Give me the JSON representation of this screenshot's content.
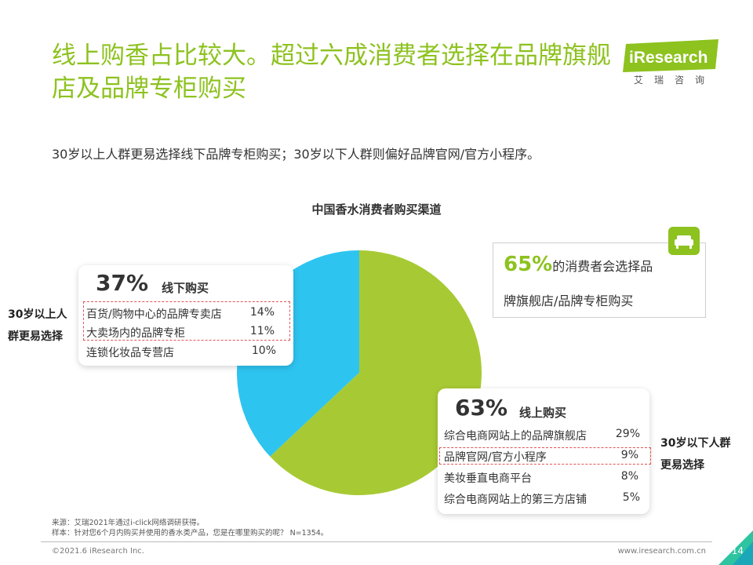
{
  "title": "线上购香占比较大。超过六成消费者选择在品牌旗舰店及品牌专柜购买",
  "logo": {
    "brand": "iResearch",
    "sub": "艾瑞咨询"
  },
  "subtitle": "30岁以上人群更易选择线下品牌专柜购买；30岁以下人群则偏好品牌官网/官方小程序。",
  "callout": {
    "highlight": "65%",
    "line1_rest": "的消费者会选择品",
    "line2": "牌旗舰店/品牌专柜购买",
    "icon": "sofa-icon"
  },
  "notes": {
    "left": [
      "30岁以上人",
      "群更易选择"
    ],
    "right": [
      "30岁以下人群",
      "更易选择"
    ]
  },
  "source": [
    "来源：艾瑞2021年通过i-click网络调研获得。",
    "样本：针对您6个月内购买并使用的香水类产品，您是在哪里购买的呢？ N=1354。"
  ],
  "footer": {
    "copyright": "©2021.6 iResearch Inc.",
    "website": "www.iresearch.com.cn",
    "page": "14"
  },
  "colors": {
    "green": "#A7CA34",
    "blue": "#2EC4F0",
    "title_green": "#8DC21F",
    "dash_red": "#E05555"
  },
  "chart_data": {
    "type": "pie",
    "title": "中国香水消费者购买渠道",
    "slices": [
      {
        "name": "线下购买",
        "value": 37,
        "label": "37%",
        "color": "#2EC4F0"
      },
      {
        "name": "线上购买",
        "value": 63,
        "label": "63%",
        "color": "#A7CA34"
      }
    ],
    "breakdown": {
      "offline": [
        {
          "name": "百货/购物中心的品牌专卖店",
          "value": "14%"
        },
        {
          "name": "大卖场内的品牌专柜",
          "value": "11%"
        },
        {
          "name": "连锁化妆品专营店",
          "value": "10%"
        }
      ],
      "online": [
        {
          "name": "综合电商网站上的品牌旗舰店",
          "value": "29%"
        },
        {
          "name": "品牌官网/官方小程序",
          "value": "9%"
        },
        {
          "name": "美妆垂直电商平台",
          "value": "8%"
        },
        {
          "name": "综合电商网站上的第三方店铺",
          "value": "5%"
        }
      ]
    }
  }
}
